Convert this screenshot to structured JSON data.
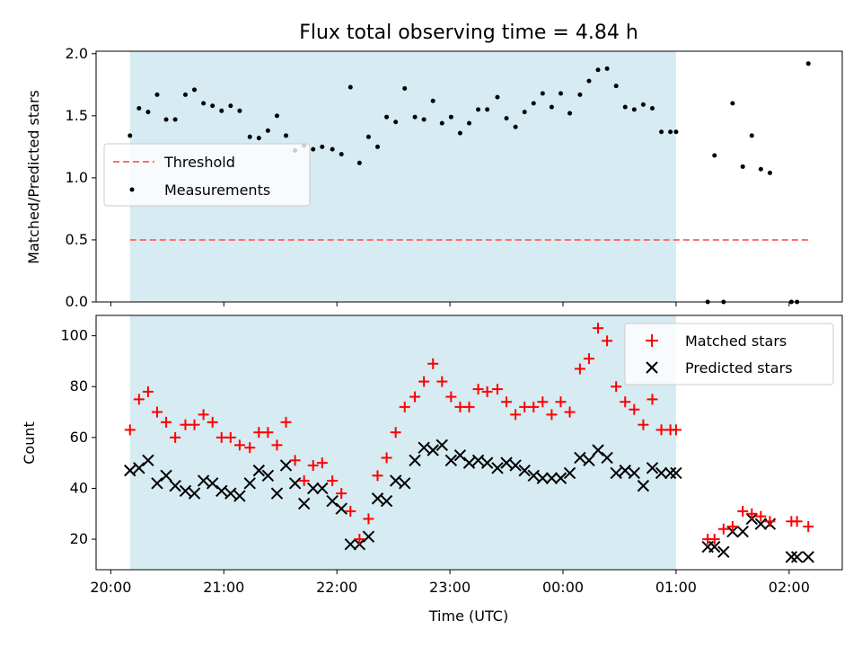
{
  "chart_data": [
    {
      "type": "scatter",
      "title": "Flux total observing time = 4.84 h",
      "xlabel": "",
      "ylabel": "Matched/Predicted stars",
      "ylim": [
        0,
        2.02
      ],
      "yticks": [
        "0.0",
        "0.5",
        "1.0",
        "1.5",
        "2.0"
      ],
      "x_axis": "time (UTC), hours after 20:00",
      "shaded_interval": [
        0.17,
        5.0
      ],
      "shade_color": "#add8e6",
      "legend": {
        "placement": "center-left",
        "entries": [
          "Threshold",
          "Measurements"
        ]
      },
      "series": [
        {
          "name": "Threshold",
          "kind": "line",
          "color": "#ff7070",
          "x": [
            0.17,
            6.18
          ],
          "y": [
            0.5,
            0.5
          ]
        },
        {
          "name": "Measurements",
          "kind": "point",
          "color": "#000000",
          "x": [
            0.17,
            0.25,
            0.33,
            0.41,
            0.49,
            0.57,
            0.66,
            0.74,
            0.82,
            0.9,
            0.98,
            1.06,
            1.14,
            1.23,
            1.31,
            1.39,
            1.47,
            1.55,
            1.63,
            1.71,
            1.79,
            1.87,
            1.96,
            2.04,
            2.12,
            2.2,
            2.28,
            2.36,
            2.44,
            2.52,
            2.6,
            2.69,
            2.77,
            2.85,
            2.93,
            3.01,
            3.09,
            3.17,
            3.25,
            3.33,
            3.42,
            3.5,
            3.58,
            3.66,
            3.74,
            3.82,
            3.9,
            3.98,
            4.06,
            4.15,
            4.23,
            4.31,
            4.39,
            4.47,
            4.55,
            4.63,
            4.71,
            4.79,
            4.87,
            4.95,
            5.0,
            5.28,
            5.34,
            5.42,
            5.5,
            5.59,
            5.67,
            5.75,
            5.83,
            6.02,
            6.07,
            6.17
          ],
          "y": [
            1.34,
            1.56,
            1.53,
            1.67,
            1.47,
            1.47,
            1.67,
            1.71,
            1.6,
            1.58,
            1.54,
            1.58,
            1.54,
            1.33,
            1.32,
            1.38,
            1.5,
            1.34,
            1.22,
            1.26,
            1.23,
            1.25,
            1.23,
            1.19,
            1.73,
            1.12,
            1.33,
            1.25,
            1.49,
            1.45,
            1.72,
            1.49,
            1.47,
            1.62,
            1.44,
            1.49,
            1.36,
            1.44,
            1.55,
            1.55,
            1.65,
            1.48,
            1.41,
            1.53,
            1.6,
            1.68,
            1.57,
            1.68,
            1.52,
            1.67,
            1.78,
            1.87,
            1.88,
            1.74,
            1.57,
            1.55,
            1.59,
            1.56,
            1.37,
            1.37,
            1.37,
            0.0,
            1.18,
            0.0,
            1.6,
            1.09,
            1.34,
            1.07,
            1.04,
            0.0,
            0.0,
            1.92
          ]
        }
      ]
    },
    {
      "type": "scatter",
      "title": "",
      "xlabel": "Time (UTC)",
      "ylabel": "Count",
      "ylim": [
        8,
        108
      ],
      "yticks": [
        "20",
        "40",
        "60",
        "80",
        "100"
      ],
      "xticks": [
        "20:00",
        "21:00",
        "22:00",
        "23:00",
        "00:00",
        "01:00",
        "02:00"
      ],
      "xlim": [
        -0.13,
        6.47
      ],
      "shaded_interval": [
        0.17,
        5.0
      ],
      "shade_color": "#add8e6",
      "legend": {
        "placement": "top-right",
        "entries": [
          "Matched stars",
          "Predicted stars"
        ]
      },
      "series": [
        {
          "name": "Matched stars",
          "marker": "plus",
          "color": "#ff0000",
          "x": [
            0.17,
            0.25,
            0.33,
            0.41,
            0.49,
            0.57,
            0.66,
            0.74,
            0.82,
            0.9,
            0.98,
            1.06,
            1.14,
            1.23,
            1.31,
            1.39,
            1.47,
            1.55,
            1.63,
            1.71,
            1.79,
            1.87,
            1.96,
            2.04,
            2.12,
            2.2,
            2.28,
            2.36,
            2.44,
            2.52,
            2.6,
            2.69,
            2.77,
            2.85,
            2.93,
            3.01,
            3.09,
            3.17,
            3.25,
            3.33,
            3.42,
            3.5,
            3.58,
            3.66,
            3.74,
            3.82,
            3.9,
            3.98,
            4.06,
            4.15,
            4.23,
            4.31,
            4.39,
            4.47,
            4.55,
            4.63,
            4.71,
            4.79,
            4.87,
            4.95,
            5.0,
            5.28,
            5.34,
            5.42,
            5.5,
            5.59,
            5.67,
            5.75,
            5.83,
            6.02,
            6.07,
            6.17
          ],
          "y": [
            63,
            75,
            78,
            70,
            66,
            60,
            65,
            65,
            69,
            66,
            60,
            60,
            57,
            56,
            62,
            62,
            57,
            66,
            51,
            43,
            49,
            50,
            43,
            38,
            31,
            20,
            28,
            45,
            52,
            62,
            72,
            76,
            82,
            89,
            82,
            76,
            72,
            72,
            79,
            78,
            79,
            74,
            69,
            72,
            72,
            74,
            69,
            74,
            70,
            87,
            91,
            103,
            98,
            80,
            74,
            71,
            65,
            75,
            63,
            63,
            63,
            20,
            20,
            24,
            25,
            31,
            30,
            29,
            27,
            27,
            27,
            25
          ]
        },
        {
          "name": "Predicted stars",
          "marker": "x",
          "color": "#000000",
          "x": [
            0.17,
            0.25,
            0.33,
            0.41,
            0.49,
            0.57,
            0.66,
            0.74,
            0.82,
            0.9,
            0.98,
            1.06,
            1.14,
            1.23,
            1.31,
            1.39,
            1.47,
            1.55,
            1.63,
            1.71,
            1.79,
            1.87,
            1.96,
            2.04,
            2.12,
            2.2,
            2.28,
            2.36,
            2.44,
            2.52,
            2.6,
            2.69,
            2.77,
            2.85,
            2.93,
            3.01,
            3.09,
            3.17,
            3.25,
            3.33,
            3.42,
            3.5,
            3.58,
            3.66,
            3.74,
            3.82,
            3.9,
            3.98,
            4.06,
            4.15,
            4.23,
            4.31,
            4.39,
            4.47,
            4.55,
            4.63,
            4.71,
            4.79,
            4.87,
            4.95,
            5.0,
            5.28,
            5.34,
            5.42,
            5.5,
            5.59,
            5.67,
            5.75,
            5.83,
            6.02,
            6.07,
            6.17
          ],
          "y": [
            47,
            48,
            51,
            42,
            45,
            41,
            39,
            38,
            43,
            42,
            39,
            38,
            37,
            42,
            47,
            45,
            38,
            49,
            42,
            34,
            40,
            40,
            35,
            32,
            18,
            18,
            21,
            36,
            35,
            43,
            42,
            51,
            56,
            55,
            57,
            51,
            53,
            50,
            51,
            50,
            48,
            50,
            49,
            47,
            45,
            44,
            44,
            44,
            46,
            52,
            51,
            55,
            52,
            46,
            47,
            46,
            41,
            48,
            46,
            46,
            46,
            17,
            17,
            15,
            23,
            23,
            28,
            26,
            26,
            13,
            13,
            13
          ]
        }
      ]
    }
  ]
}
